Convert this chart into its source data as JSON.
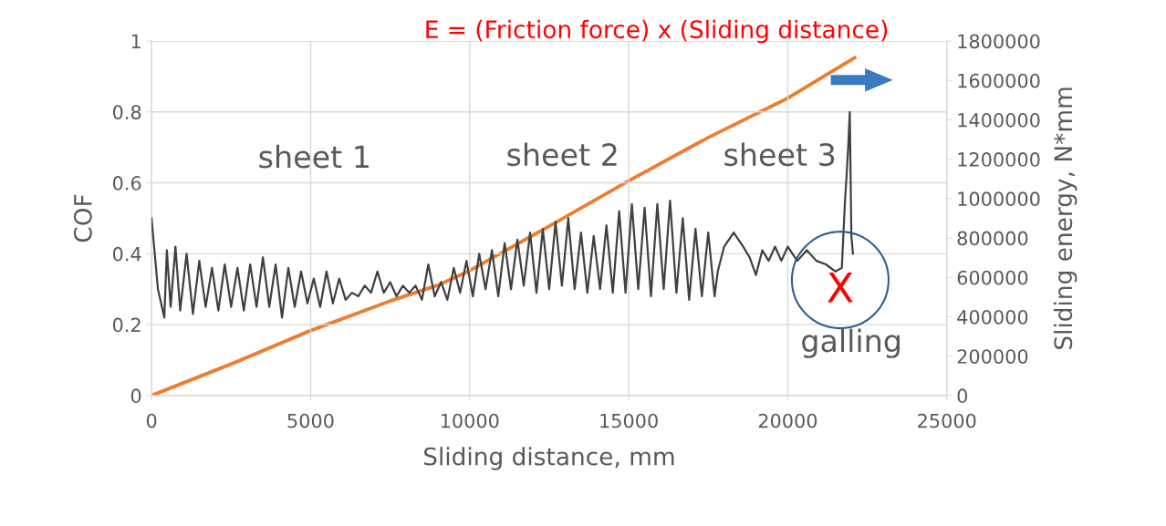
{
  "chart_data": {
    "type": "line",
    "title": "E = (Friction force) x (Sliding distance)",
    "xlabel": "Sliding distance, mm",
    "ylabel": "COF",
    "y2label": "Sliding energy, N*mm",
    "xlim": [
      0,
      25000
    ],
    "xticks": [
      0,
      5000,
      10000,
      15000,
      20000,
      25000
    ],
    "ylim": [
      0,
      1
    ],
    "yticks": [
      0,
      0.2,
      0.4,
      0.6,
      0.8,
      1
    ],
    "y2lim": [
      0,
      1800000
    ],
    "y2ticks": [
      0,
      200000,
      400000,
      600000,
      800000,
      1000000,
      1200000,
      1400000,
      1600000,
      1800000
    ],
    "grid": true,
    "marker": "none",
    "line_style": "solid",
    "annotations": [
      "sheet 1",
      "sheet 2",
      "sheet 3",
      "galling",
      "X"
    ],
    "series": [
      {
        "color": "#404040",
        "x": [
          0,
          80,
          200,
          300,
          400,
          480,
          600,
          750,
          900,
          1100,
          1300,
          1500,
          1700,
          1900,
          2100,
          2300,
          2500,
          2700,
          2900,
          3100,
          3300,
          3500,
          3700,
          3900,
          4100,
          4300,
          4500,
          4700,
          4900,
          5100,
          5300,
          5500,
          5700,
          5900,
          6100,
          6300,
          6500,
          6700,
          6900,
          7100,
          7300,
          7500,
          7700,
          7900,
          8100,
          8300,
          8500,
          8700,
          8900,
          9100,
          9300,
          9500,
          9700,
          9900,
          10100,
          10300,
          10500,
          10700,
          10900,
          11100,
          11300,
          11500,
          11700,
          11900,
          12100,
          12300,
          12500,
          12700,
          12900,
          13100,
          13300,
          13500,
          13700,
          13900,
          14100,
          14300,
          14500,
          14700,
          14900,
          15100,
          15300,
          15500,
          15700,
          15900,
          16100,
          16300,
          16500,
          16700,
          16900,
          17100,
          17300,
          17500,
          17700,
          17800,
          18000,
          18300,
          18600,
          18800,
          19000,
          19200,
          19400,
          19600,
          19800,
          20000,
          20300,
          20600,
          20900,
          21200,
          21500,
          21700,
          21800,
          21850,
          21900,
          21950,
          22000,
          22050
        ],
        "values": [
          0.5,
          0.42,
          0.3,
          0.26,
          0.22,
          0.41,
          0.25,
          0.42,
          0.24,
          0.4,
          0.23,
          0.38,
          0.25,
          0.36,
          0.24,
          0.37,
          0.25,
          0.36,
          0.24,
          0.37,
          0.25,
          0.39,
          0.25,
          0.37,
          0.22,
          0.36,
          0.25,
          0.35,
          0.26,
          0.33,
          0.25,
          0.35,
          0.26,
          0.33,
          0.27,
          0.29,
          0.28,
          0.31,
          0.29,
          0.35,
          0.29,
          0.32,
          0.28,
          0.31,
          0.29,
          0.31,
          0.27,
          0.37,
          0.28,
          0.32,
          0.27,
          0.36,
          0.29,
          0.38,
          0.28,
          0.4,
          0.3,
          0.41,
          0.28,
          0.43,
          0.3,
          0.44,
          0.31,
          0.46,
          0.29,
          0.47,
          0.3,
          0.49,
          0.31,
          0.5,
          0.3,
          0.46,
          0.29,
          0.45,
          0.3,
          0.48,
          0.29,
          0.52,
          0.29,
          0.54,
          0.3,
          0.53,
          0.28,
          0.54,
          0.3,
          0.55,
          0.29,
          0.5,
          0.27,
          0.47,
          0.28,
          0.46,
          0.28,
          0.35,
          0.42,
          0.46,
          0.42,
          0.39,
          0.34,
          0.41,
          0.38,
          0.42,
          0.38,
          0.42,
          0.38,
          0.41,
          0.38,
          0.37,
          0.35,
          0.36,
          0.55,
          0.62,
          0.7,
          0.8,
          0.45,
          0.4
        ]
      },
      {
        "color": "#ed7d31",
        "axis": "y2",
        "x": [
          0,
          2500,
          5000,
          7500,
          9000,
          10000,
          12500,
          15000,
          17500,
          20000,
          22100
        ],
        "values": [
          0,
          160000,
          330000,
          480000,
          560000,
          634000,
          860000,
          1090000,
          1310000,
          1510000,
          1715000
        ]
      }
    ]
  }
}
